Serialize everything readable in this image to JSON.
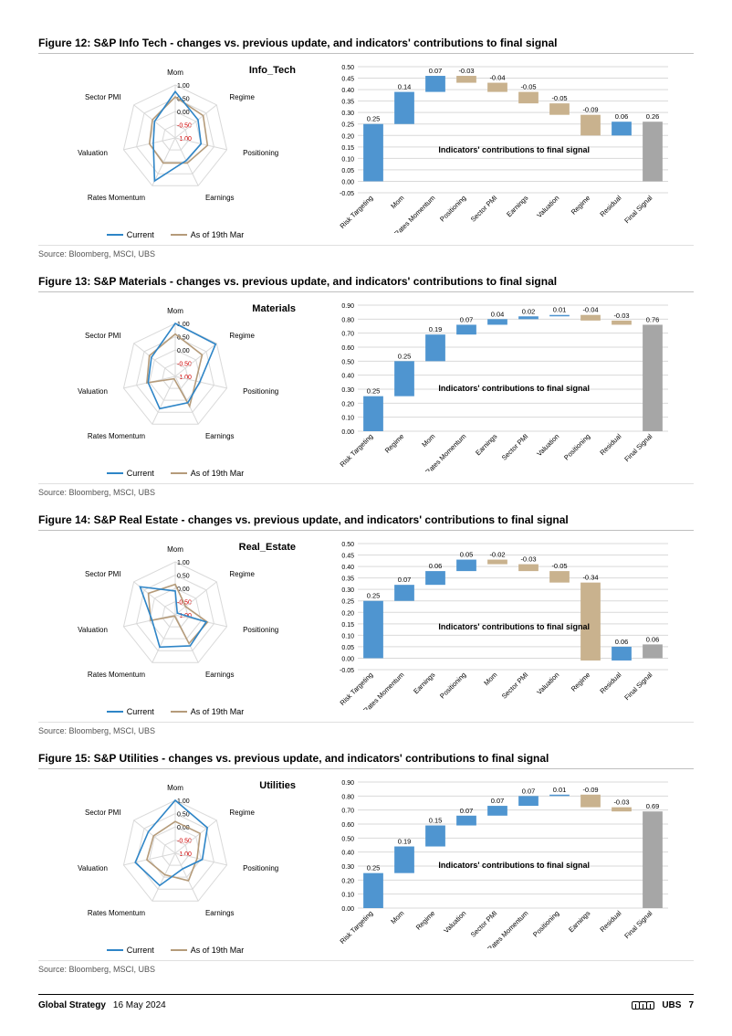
{
  "page": {
    "footer_left_bold": "Global Strategy",
    "footer_date": "16 May 2024",
    "footer_brand": "UBS",
    "page_number": "7"
  },
  "common": {
    "radar_axes": [
      "Mom",
      "Regime",
      "Positioning",
      "Earnings",
      "Rates Momentum",
      "Valuation",
      "Sector PMI"
    ],
    "radar_ring_labels": [
      "1.00",
      "0.50",
      "0.00",
      "-0.50",
      "-1.00"
    ],
    "radar_ring_colors": [
      "#000000",
      "#000000",
      "#000000",
      "#d00000",
      "#d00000"
    ],
    "legend_current": "Current",
    "legend_prev": "As of 19th Mar",
    "color_current": "#2e85c7",
    "color_prev": "#b59b7a",
    "color_pos_bar": "#4f95d0",
    "color_neg_bar": "#c9b28e",
    "color_final_bar": "#a6a6a6",
    "grid_color": "#d9d9d9",
    "axis_color": "#bfbfbf",
    "bar_inner_label": "Indicators' contributions to final signal",
    "axis_fontsize": 7,
    "label_fontsize": 8,
    "source_text": "Source: Bloomberg, MSCI, UBS"
  },
  "figures": [
    {
      "title": "Figure 12: S&P Info Tech - changes vs. previous update, and indicators' contributions to final signal",
      "corner": "Info_Tech",
      "radar": {
        "current": [
          0.75,
          0.1,
          0.0,
          -0.05,
          0.8,
          -0.15,
          0.0
        ],
        "prev": [
          0.55,
          0.35,
          0.25,
          0.05,
          0.05,
          0.0,
          0.1
        ]
      },
      "bars": {
        "ylim": [
          -0.05,
          0.5
        ],
        "ytick_step": 0.05,
        "items": [
          {
            "label": "Risk Targeting",
            "value": 0.25,
            "show": "0.25"
          },
          {
            "label": "Mom",
            "value": 0.14,
            "show": "0.14"
          },
          {
            "label": "Rates Momentum",
            "value": 0.07,
            "show": "0.07"
          },
          {
            "label": "Positioning",
            "value": -0.03,
            "show": "-0.03"
          },
          {
            "label": "Sector PMI",
            "value": -0.04,
            "show": "-0.04"
          },
          {
            "label": "Earnings",
            "value": -0.05,
            "show": "-0.05"
          },
          {
            "label": "Valuation",
            "value": -0.05,
            "show": "-0.05"
          },
          {
            "label": "Regime",
            "value": -0.09,
            "show": "-0.09"
          },
          {
            "label": "Residual",
            "value": 0.06,
            "show": "0.06"
          }
        ],
        "final": {
          "label": "Final Signal",
          "value": 0.26,
          "show": "0.26"
        }
      }
    },
    {
      "title": "Figure 13: S&P Materials - changes vs. previous update, and indicators' contributions to final signal",
      "corner": "Materials",
      "radar": {
        "current": [
          1.0,
          0.95,
          -0.05,
          0.1,
          0.35,
          0.05,
          0.15
        ],
        "prev": [
          0.6,
          0.3,
          -0.2,
          0.25,
          -0.9,
          0.1,
          0.25
        ]
      },
      "bars": {
        "ylim": [
          0.0,
          0.9
        ],
        "ytick_step": 0.1,
        "items": [
          {
            "label": "Risk Targeting",
            "value": 0.25,
            "show": "0.25"
          },
          {
            "label": "Regime",
            "value": 0.25,
            "show": "0.25"
          },
          {
            "label": "Mom",
            "value": 0.19,
            "show": "0.19"
          },
          {
            "label": "Rates Momentum",
            "value": 0.07,
            "show": "0.07"
          },
          {
            "label": "Earnings",
            "value": 0.04,
            "show": "0.04"
          },
          {
            "label": "Sector PMI",
            "value": 0.02,
            "show": "0.02"
          },
          {
            "label": "Valuation",
            "value": 0.01,
            "show": "0.01"
          },
          {
            "label": "Positioning",
            "value": -0.04,
            "show": "-0.04"
          },
          {
            "label": "Residual",
            "value": -0.03,
            "show": "-0.03"
          }
        ],
        "final": {
          "label": "Final Signal",
          "value": 0.76,
          "show": "0.76"
        }
      }
    },
    {
      "title": "Figure 14: S&P Real Estate - changes vs. previous update, and indicators' contributions to final signal",
      "corner": "Real_Estate",
      "radar": {
        "current": [
          -0.1,
          -0.9,
          0.2,
          0.3,
          0.35,
          -0.1,
          0.7
        ],
        "prev": [
          0.15,
          -0.5,
          0.25,
          0.2,
          -0.95,
          -0.05,
          0.3
        ]
      },
      "bars": {
        "ylim": [
          -0.05,
          0.5
        ],
        "ytick_step": 0.05,
        "items": [
          {
            "label": "Risk Targeting",
            "value": 0.25,
            "show": "0.25"
          },
          {
            "label": "Rates Momentum",
            "value": 0.07,
            "show": "0.07"
          },
          {
            "label": "Earnings",
            "value": 0.06,
            "show": "0.06"
          },
          {
            "label": "Positioning",
            "value": 0.05,
            "show": "0.05"
          },
          {
            "label": "Mom",
            "value": -0.02,
            "show": "-0.02"
          },
          {
            "label": "Sector PMI",
            "value": -0.03,
            "show": "-0.03"
          },
          {
            "label": "Valuation",
            "value": -0.05,
            "show": "-0.05"
          },
          {
            "label": "Regime",
            "value": -0.34,
            "show": "-0.34"
          },
          {
            "label": "Residual",
            "value": 0.06,
            "show": "0.06"
          }
        ],
        "final": {
          "label": "Final Signal",
          "value": 0.06,
          "show": "0.06"
        }
      }
    },
    {
      "title": "Figure 15: S&P Utilities - changes vs. previous update, and indicators' contributions to final signal",
      "corner": "Utilities",
      "radar": {
        "current": [
          1.0,
          0.55,
          0.05,
          -0.35,
          0.35,
          0.55,
          0.3
        ],
        "prev": [
          0.2,
          0.2,
          -0.15,
          0.15,
          -0.1,
          0.1,
          0.05
        ]
      },
      "bars": {
        "ylim": [
          0.0,
          0.9
        ],
        "ytick_step": 0.1,
        "items": [
          {
            "label": "Risk Targeting",
            "value": 0.25,
            "show": "0.25"
          },
          {
            "label": "Mom",
            "value": 0.19,
            "show": "0.19"
          },
          {
            "label": "Regime",
            "value": 0.15,
            "show": "0.15"
          },
          {
            "label": "Valuation",
            "value": 0.07,
            "show": "0.07"
          },
          {
            "label": "Sector PMI",
            "value": 0.07,
            "show": "0.07"
          },
          {
            "label": "Rates Momentum",
            "value": 0.07,
            "show": "0.07"
          },
          {
            "label": "Positioning",
            "value": 0.01,
            "show": "0.01"
          },
          {
            "label": "Earnings",
            "value": -0.09,
            "show": "-0.09"
          },
          {
            "label": "Residual",
            "value": -0.03,
            "show": "-0.03"
          }
        ],
        "final": {
          "label": "Final Signal",
          "value": 0.69,
          "show": "0.69"
        }
      }
    }
  ]
}
